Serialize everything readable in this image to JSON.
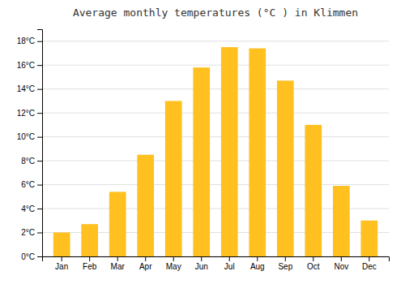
{
  "chart_data": {
    "type": "bar",
    "title": "Average monthly temperatures (°C ) in Klimmen",
    "categories": [
      "Jan",
      "Feb",
      "Mar",
      "Apr",
      "May",
      "Jun",
      "Jul",
      "Aug",
      "Sep",
      "Oct",
      "Nov",
      "Dec"
    ],
    "values": [
      2.0,
      2.7,
      5.4,
      8.5,
      13.0,
      15.8,
      17.5,
      17.4,
      14.7,
      11.0,
      5.9,
      3.0
    ],
    "color": "#FFC020",
    "ylim": [
      0,
      19
    ],
    "yticks": [
      {
        "value": 0,
        "label": "0°C"
      },
      {
        "value": 2,
        "label": "2°C"
      },
      {
        "value": 4,
        "label": "4°C"
      },
      {
        "value": 6,
        "label": "6°C"
      },
      {
        "value": 8,
        "label": "8°C"
      },
      {
        "value": 10,
        "label": "10°C"
      },
      {
        "value": 12,
        "label": "12°C"
      },
      {
        "value": 14,
        "label": "14°C"
      },
      {
        "value": 16,
        "label": "16°C"
      },
      {
        "value": 18,
        "label": "18°C"
      }
    ],
    "grid": true
  }
}
